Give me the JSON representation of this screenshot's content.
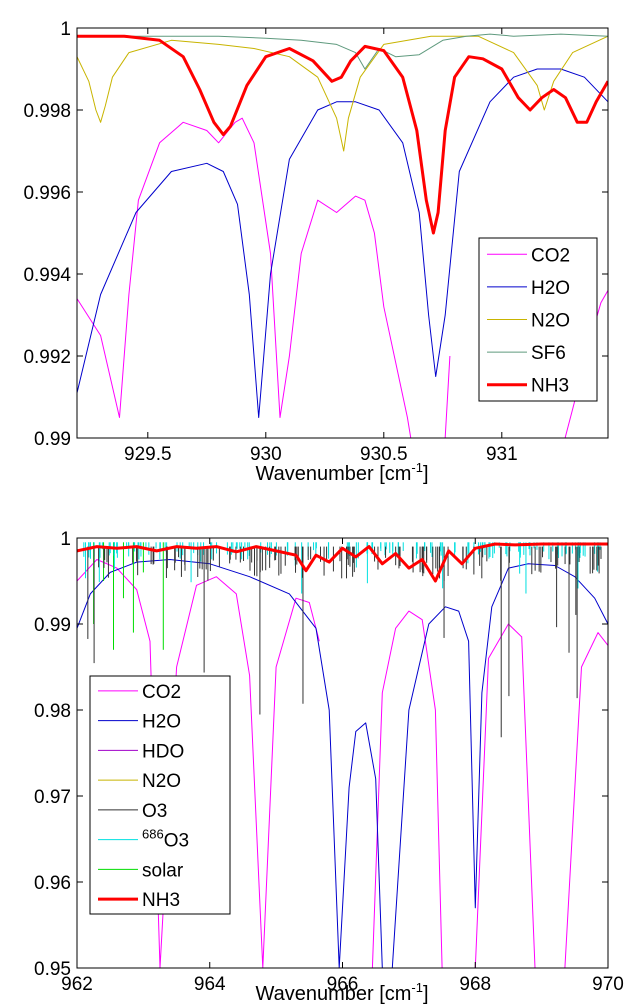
{
  "chart_data": [
    {
      "type": "line",
      "title": "",
      "xlabel": "Wavenumber [cm",
      "xlabel_sup": "-1",
      "xlabel_end": "]",
      "ylabel": "",
      "xlim": [
        929.2,
        931.45
      ],
      "ylim": [
        0.99,
        1.0
      ],
      "grid": false,
      "legend_placement": "lower-right",
      "xticks": [
        929.5,
        930,
        930.5,
        931
      ],
      "xtick_labels": [
        "929.5",
        "930",
        "930.5",
        "931"
      ],
      "yticks": [
        0.99,
        0.992,
        0.994,
        0.996,
        0.998,
        1.0
      ],
      "ytick_labels": [
        "0.99",
        "0.992",
        "0.994",
        "0.996",
        "0.998",
        "1"
      ],
      "series": [
        {
          "name": "CO2",
          "color": "#ff00ff",
          "width": 1,
          "x": [
            929.2,
            929.3,
            929.38,
            929.42,
            929.46,
            929.55,
            929.65,
            929.75,
            929.8,
            929.87,
            929.9,
            929.95,
            930.02,
            930.06,
            930.1,
            930.15,
            930.22,
            930.3,
            930.38,
            930.42,
            930.46,
            930.5,
            930.6,
            930.7,
            930.75,
            930.78
          ],
          "y": [
            0.9934,
            0.9925,
            0.9905,
            0.9935,
            0.9958,
            0.9972,
            0.9977,
            0.9975,
            0.9972,
            0.9977,
            0.9978,
            0.9972,
            0.9945,
            0.9905,
            0.992,
            0.9945,
            0.9958,
            0.9955,
            0.9959,
            0.9958,
            0.995,
            0.9932,
            0.9905,
            0.987,
            0.989,
            0.992
          ]
        },
        {
          "name": "CO2",
          "color": "#ff00ff",
          "width": 1,
          "x": [
            931.2,
            931.3,
            931.38,
            931.42,
            931.45
          ],
          "y": [
            0.9885,
            0.9907,
            0.9925,
            0.9933,
            0.9936
          ]
        },
        {
          "name": "H2O",
          "color": "#0000cc",
          "width": 1,
          "x": [
            929.2,
            929.3,
            929.45,
            929.6,
            929.75,
            929.82,
            929.88,
            929.93,
            929.97,
            930.02,
            930.1,
            930.22,
            930.3,
            930.38,
            930.48,
            930.58,
            930.65,
            930.69,
            930.72,
            930.76,
            930.82,
            930.95,
            931.05,
            931.15,
            931.25,
            931.35,
            931.45
          ],
          "y": [
            0.9911,
            0.9935,
            0.9955,
            0.9965,
            0.9967,
            0.9965,
            0.9957,
            0.9935,
            0.9905,
            0.994,
            0.9968,
            0.998,
            0.9982,
            0.9982,
            0.998,
            0.9972,
            0.9955,
            0.993,
            0.9915,
            0.993,
            0.9965,
            0.9982,
            0.9988,
            0.999,
            0.999,
            0.9988,
            0.9982
          ]
        },
        {
          "name": "N2O",
          "color": "#c8b400",
          "width": 1,
          "x": [
            929.2,
            929.25,
            929.28,
            929.3,
            929.32,
            929.35,
            929.42,
            929.6,
            929.8,
            929.95,
            930.1,
            930.22,
            930.3,
            930.33,
            930.35,
            930.4,
            930.5,
            930.7,
            930.9,
            931.05,
            931.15,
            931.18,
            931.22,
            931.3,
            931.45
          ],
          "y": [
            0.9993,
            0.9987,
            0.998,
            0.9977,
            0.9981,
            0.9988,
            0.9994,
            0.9997,
            0.9996,
            0.9995,
            0.9993,
            0.9988,
            0.9978,
            0.997,
            0.9978,
            0.9988,
            0.9996,
            0.9998,
            0.9998,
            0.9994,
            0.9986,
            0.998,
            0.9987,
            0.9994,
            0.9998
          ]
        },
        {
          "name": "SF6",
          "color": "#5f9a7e",
          "width": 1,
          "x": [
            929.2,
            929.5,
            929.8,
            930.0,
            930.15,
            930.3,
            930.38,
            930.42,
            930.48,
            930.55,
            930.65,
            930.75,
            930.85,
            930.95,
            931.05,
            931.25,
            931.45
          ],
          "y": [
            0.9998,
            0.9998,
            0.9998,
            0.99975,
            0.9997,
            0.9996,
            0.9994,
            0.999,
            0.9995,
            0.9993,
            0.99935,
            0.9997,
            0.9998,
            0.99985,
            0.9998,
            0.99985,
            0.9998
          ]
        },
        {
          "name": "NH3",
          "color": "#ff0000",
          "width": 3,
          "x": [
            929.2,
            929.4,
            929.55,
            929.65,
            929.72,
            929.78,
            929.82,
            929.85,
            929.92,
            930.0,
            930.1,
            930.2,
            930.28,
            930.32,
            930.36,
            930.42,
            930.5,
            930.58,
            930.64,
            930.68,
            930.71,
            930.73,
            930.76,
            930.8,
            930.86,
            930.92,
            931.0,
            931.07,
            931.12,
            931.17,
            931.22,
            931.27,
            931.32,
            931.36,
            931.4,
            931.45
          ],
          "y": [
            0.9998,
            0.9998,
            0.9997,
            0.9993,
            0.9985,
            0.9977,
            0.9974,
            0.9976,
            0.9986,
            0.9993,
            0.9995,
            0.9992,
            0.9987,
            0.9988,
            0.9992,
            0.99955,
            0.99945,
            0.9988,
            0.9975,
            0.9958,
            0.995,
            0.9955,
            0.9975,
            0.9988,
            0.9993,
            0.99925,
            0.999,
            0.9983,
            0.998,
            0.9983,
            0.9985,
            0.9983,
            0.9977,
            0.9977,
            0.9982,
            0.9987
          ]
        }
      ],
      "legend": [
        {
          "label": "CO2",
          "color": "#ff00ff",
          "width": 1
        },
        {
          "label": "H2O",
          "color": "#0000cc",
          "width": 1
        },
        {
          "label": "N2O",
          "color": "#c8b400",
          "width": 1
        },
        {
          "label": "SF6",
          "color": "#5f9a7e",
          "width": 1
        },
        {
          "label": "NH3",
          "color": "#ff0000",
          "width": 3
        }
      ]
    },
    {
      "type": "line",
      "title": "",
      "xlabel": "Wavenumber [cm",
      "xlabel_sup": "-1",
      "xlabel_end": "]",
      "ylabel": "",
      "xlim": [
        962,
        970
      ],
      "ylim": [
        0.95,
        1.0
      ],
      "grid": false,
      "legend_placement": "lower-left",
      "xticks": [
        962,
        964,
        966,
        968,
        970
      ],
      "xtick_labels": [
        "962",
        "964",
        "966",
        "968",
        "970"
      ],
      "yticks": [
        0.95,
        0.96,
        0.97,
        0.98,
        0.99,
        1.0
      ],
      "ytick_labels": [
        "0.95",
        "0.96",
        "0.97",
        "0.98",
        "0.99",
        "1"
      ],
      "series": [
        {
          "name": "CO2",
          "color": "#ff00ff",
          "width": 1,
          "x": [
            962,
            962.3,
            962.6,
            962.9,
            963.1,
            963.25,
            963.5,
            963.8,
            964.1,
            964.4,
            964.6,
            964.8,
            965.0,
            965.3,
            965.5,
            965.65
          ],
          "y": [
            0.995,
            0.9975,
            0.9965,
            0.994,
            0.988,
            0.95,
            0.985,
            0.9945,
            0.9955,
            0.9935,
            0.984,
            0.95,
            0.985,
            0.993,
            0.9925,
            0.988
          ]
        },
        {
          "name": "CO2",
          "color": "#ff00ff",
          "width": 1,
          "x": [
            966.45,
            966.6,
            966.8,
            967.0,
            967.2,
            967.4,
            967.5
          ],
          "y": [
            0.95,
            0.982,
            0.9895,
            0.9915,
            0.9905,
            0.98,
            0.95
          ]
        },
        {
          "name": "CO2",
          "color": "#ff00ff",
          "width": 1,
          "x": [
            968.0,
            968.2,
            968.5,
            968.7,
            968.9,
            969.1,
            969.35,
            969.6,
            969.85,
            970
          ],
          "y": [
            0.95,
            0.986,
            0.99,
            0.9885,
            0.95,
            0.95,
            0.95,
            0.985,
            0.989,
            0.9875
          ]
        },
        {
          "name": "H2O",
          "color": "#0000cc",
          "width": 1,
          "x": [
            962,
            962.2,
            962.5,
            962.9,
            963.4,
            964.0,
            964.6,
            965.2,
            965.6,
            965.8,
            965.95,
            966.1,
            966.2,
            966.35,
            966.5,
            966.6,
            966.7
          ],
          "y": [
            0.9895,
            0.9935,
            0.996,
            0.9972,
            0.9975,
            0.997,
            0.9955,
            0.9935,
            0.9895,
            0.98,
            0.95,
            0.971,
            0.9775,
            0.9785,
            0.972,
            0.95,
            0.95
          ]
        },
        {
          "name": "H2O",
          "color": "#0000cc",
          "width": 1,
          "x": [
            966.75,
            967.0,
            967.3,
            967.55,
            967.75,
            967.9,
            968.0,
            968.1,
            968.25,
            968.5,
            968.8,
            969.2,
            969.5,
            969.8,
            970
          ],
          "y": [
            0.95,
            0.98,
            0.99,
            0.992,
            0.9915,
            0.988,
            0.957,
            0.982,
            0.992,
            0.9965,
            0.997,
            0.9968,
            0.9955,
            0.993,
            0.99
          ]
        }
      ],
      "legend": [
        {
          "label": "CO2",
          "color": "#ff00ff",
          "width": 1,
          "sup": ""
        },
        {
          "label": "H2O",
          "color": "#0000cc",
          "width": 1,
          "sup": ""
        },
        {
          "label": "HDO",
          "color": "#a000c8",
          "width": 1,
          "sup": ""
        },
        {
          "label": "N2O",
          "color": "#c8b400",
          "width": 1,
          "sup": ""
        },
        {
          "label": "O3",
          "color": "#333333",
          "width": 1,
          "sup": ""
        },
        {
          "label": "O3",
          "color": "#00e0e0",
          "width": 1,
          "sup": "686"
        },
        {
          "label": "solar",
          "color": "#00dd00",
          "width": 1,
          "sup": ""
        },
        {
          "label": "NH3",
          "color": "#ff0000",
          "width": 3,
          "sup": ""
        }
      ],
      "o3_lines": {
        "color": "#333333",
        "x_min": 962.1,
        "x_max": 969.9,
        "count": 130,
        "base": 0.999,
        "typical_depth": 0.004,
        "max_depth": 0.025
      },
      "o3_686_lines": {
        "color": "#00e0e0",
        "x_min": 962.1,
        "x_max": 969.9,
        "count": 150,
        "base": 0.9995,
        "typical_depth": 0.002,
        "max_depth": 0.006
      },
      "solar_lines": {
        "color": "#00dd00",
        "x": [
          962.25,
          962.4,
          962.55,
          962.7,
          962.85,
          963.0,
          963.3
        ],
        "y": [
          0.99,
          0.995,
          0.987,
          0.993,
          0.989,
          0.996,
          0.987
        ]
      },
      "nh3": {
        "color": "#ff0000",
        "width": 3,
        "x": [
          962,
          962.3,
          962.6,
          962.9,
          963.2,
          963.5,
          963.8,
          964.1,
          964.4,
          964.7,
          965.0,
          965.3,
          965.45,
          965.6,
          965.8,
          966.0,
          966.2,
          966.4,
          966.6,
          966.8,
          967.0,
          967.2,
          967.4,
          967.6,
          967.8,
          968.0,
          968.3,
          968.6,
          969.0,
          969.5,
          970
        ],
        "y": [
          0.9985,
          0.999,
          0.9988,
          0.999,
          0.9985,
          0.999,
          0.9988,
          0.999,
          0.9984,
          0.999,
          0.9985,
          0.998,
          0.9962,
          0.998,
          0.9972,
          0.9988,
          0.9978,
          0.999,
          0.997,
          0.9982,
          0.9965,
          0.9975,
          0.995,
          0.9985,
          0.997,
          0.9988,
          0.9993,
          0.9992,
          0.9993,
          0.9993,
          0.9993
        ]
      }
    }
  ]
}
